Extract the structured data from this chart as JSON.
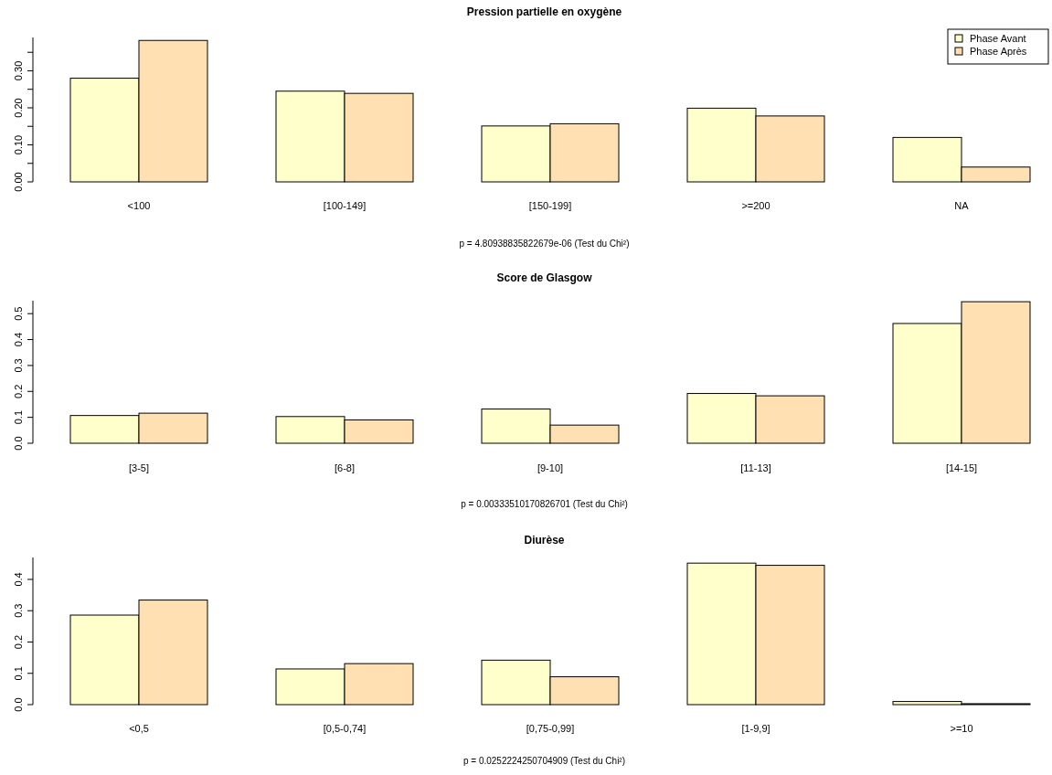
{
  "chart_data": [
    {
      "type": "bar",
      "title": "Pression partielle en oxygène",
      "categories": [
        "<100",
        "[100-149]",
        "[150-199]",
        ">=200",
        "NA"
      ],
      "series": [
        {
          "name": "Phase Avant",
          "color": "#ffffcc",
          "values": [
            0.28,
            0.245,
            0.151,
            0.199,
            0.12
          ]
        },
        {
          "name": "Phase Après",
          "color": "#fee0b2",
          "values": [
            0.382,
            0.239,
            0.157,
            0.178,
            0.04
          ]
        }
      ],
      "ylim": [
        0,
        0.39
      ],
      "yticks": [
        {
          "value": 0,
          "label": "0.00"
        },
        {
          "value": 0.05,
          "label": null
        },
        {
          "value": 0.1,
          "label": "0.10"
        },
        {
          "value": 0.15,
          "label": null
        },
        {
          "value": 0.2,
          "label": "0.20"
        },
        {
          "value": 0.25,
          "label": null
        },
        {
          "value": 0.3,
          "label": "0.30"
        },
        {
          "value": 0.35,
          "label": null
        }
      ],
      "legend": "top right",
      "annotations": [
        "p = 4.80938835822679e-06 (Test du Chi²)"
      ]
    },
    {
      "type": "bar",
      "title": "Score de Glasgow",
      "categories": [
        "[3-5]",
        "[6-8]",
        "[9-10]",
        "[11-13]",
        "[14-15]"
      ],
      "series": [
        {
          "color": "#ffffcc",
          "values": [
            0.107,
            0.103,
            0.132,
            0.192,
            0.462
          ]
        },
        {
          "color": "#fee0b2",
          "values": [
            0.116,
            0.09,
            0.07,
            0.183,
            0.546
          ]
        }
      ],
      "ylim": [
        0,
        0.55
      ],
      "yticks": [
        {
          "value": 0,
          "label": "0.0"
        },
        {
          "value": 0.1,
          "label": "0.1"
        },
        {
          "value": 0.2,
          "label": "0.2"
        },
        {
          "value": 0.3,
          "label": "0.3"
        },
        {
          "value": 0.4,
          "label": "0.4"
        },
        {
          "value": 0.5,
          "label": "0.5"
        }
      ],
      "annotations": [
        "p = 0.00333510170826701 (Test du Chi²)"
      ]
    },
    {
      "type": "bar",
      "title": "Diurèse",
      "categories": [
        "<0,5",
        "[0,5-0,74]",
        "[0,75-0,99]",
        "[1-9,9]",
        ">=10"
      ],
      "series": [
        {
          "color": "#ffffcc",
          "values": [
            0.286,
            0.114,
            0.142,
            0.452,
            0.01
          ]
        },
        {
          "color": "#fee0b2",
          "values": [
            0.334,
            0.131,
            0.089,
            0.445,
            0.003
          ]
        }
      ],
      "ylim": [
        0,
        0.47
      ],
      "yticks": [
        {
          "value": 0,
          "label": "0.0"
        },
        {
          "value": 0.1,
          "label": "0.1"
        },
        {
          "value": 0.2,
          "label": "0.2"
        },
        {
          "value": 0.3,
          "label": "0.3"
        },
        {
          "value": 0.4,
          "label": "0.4"
        }
      ],
      "annotations": [
        "p = 0.0252224250704909 (Test du Chi²)"
      ]
    }
  ]
}
